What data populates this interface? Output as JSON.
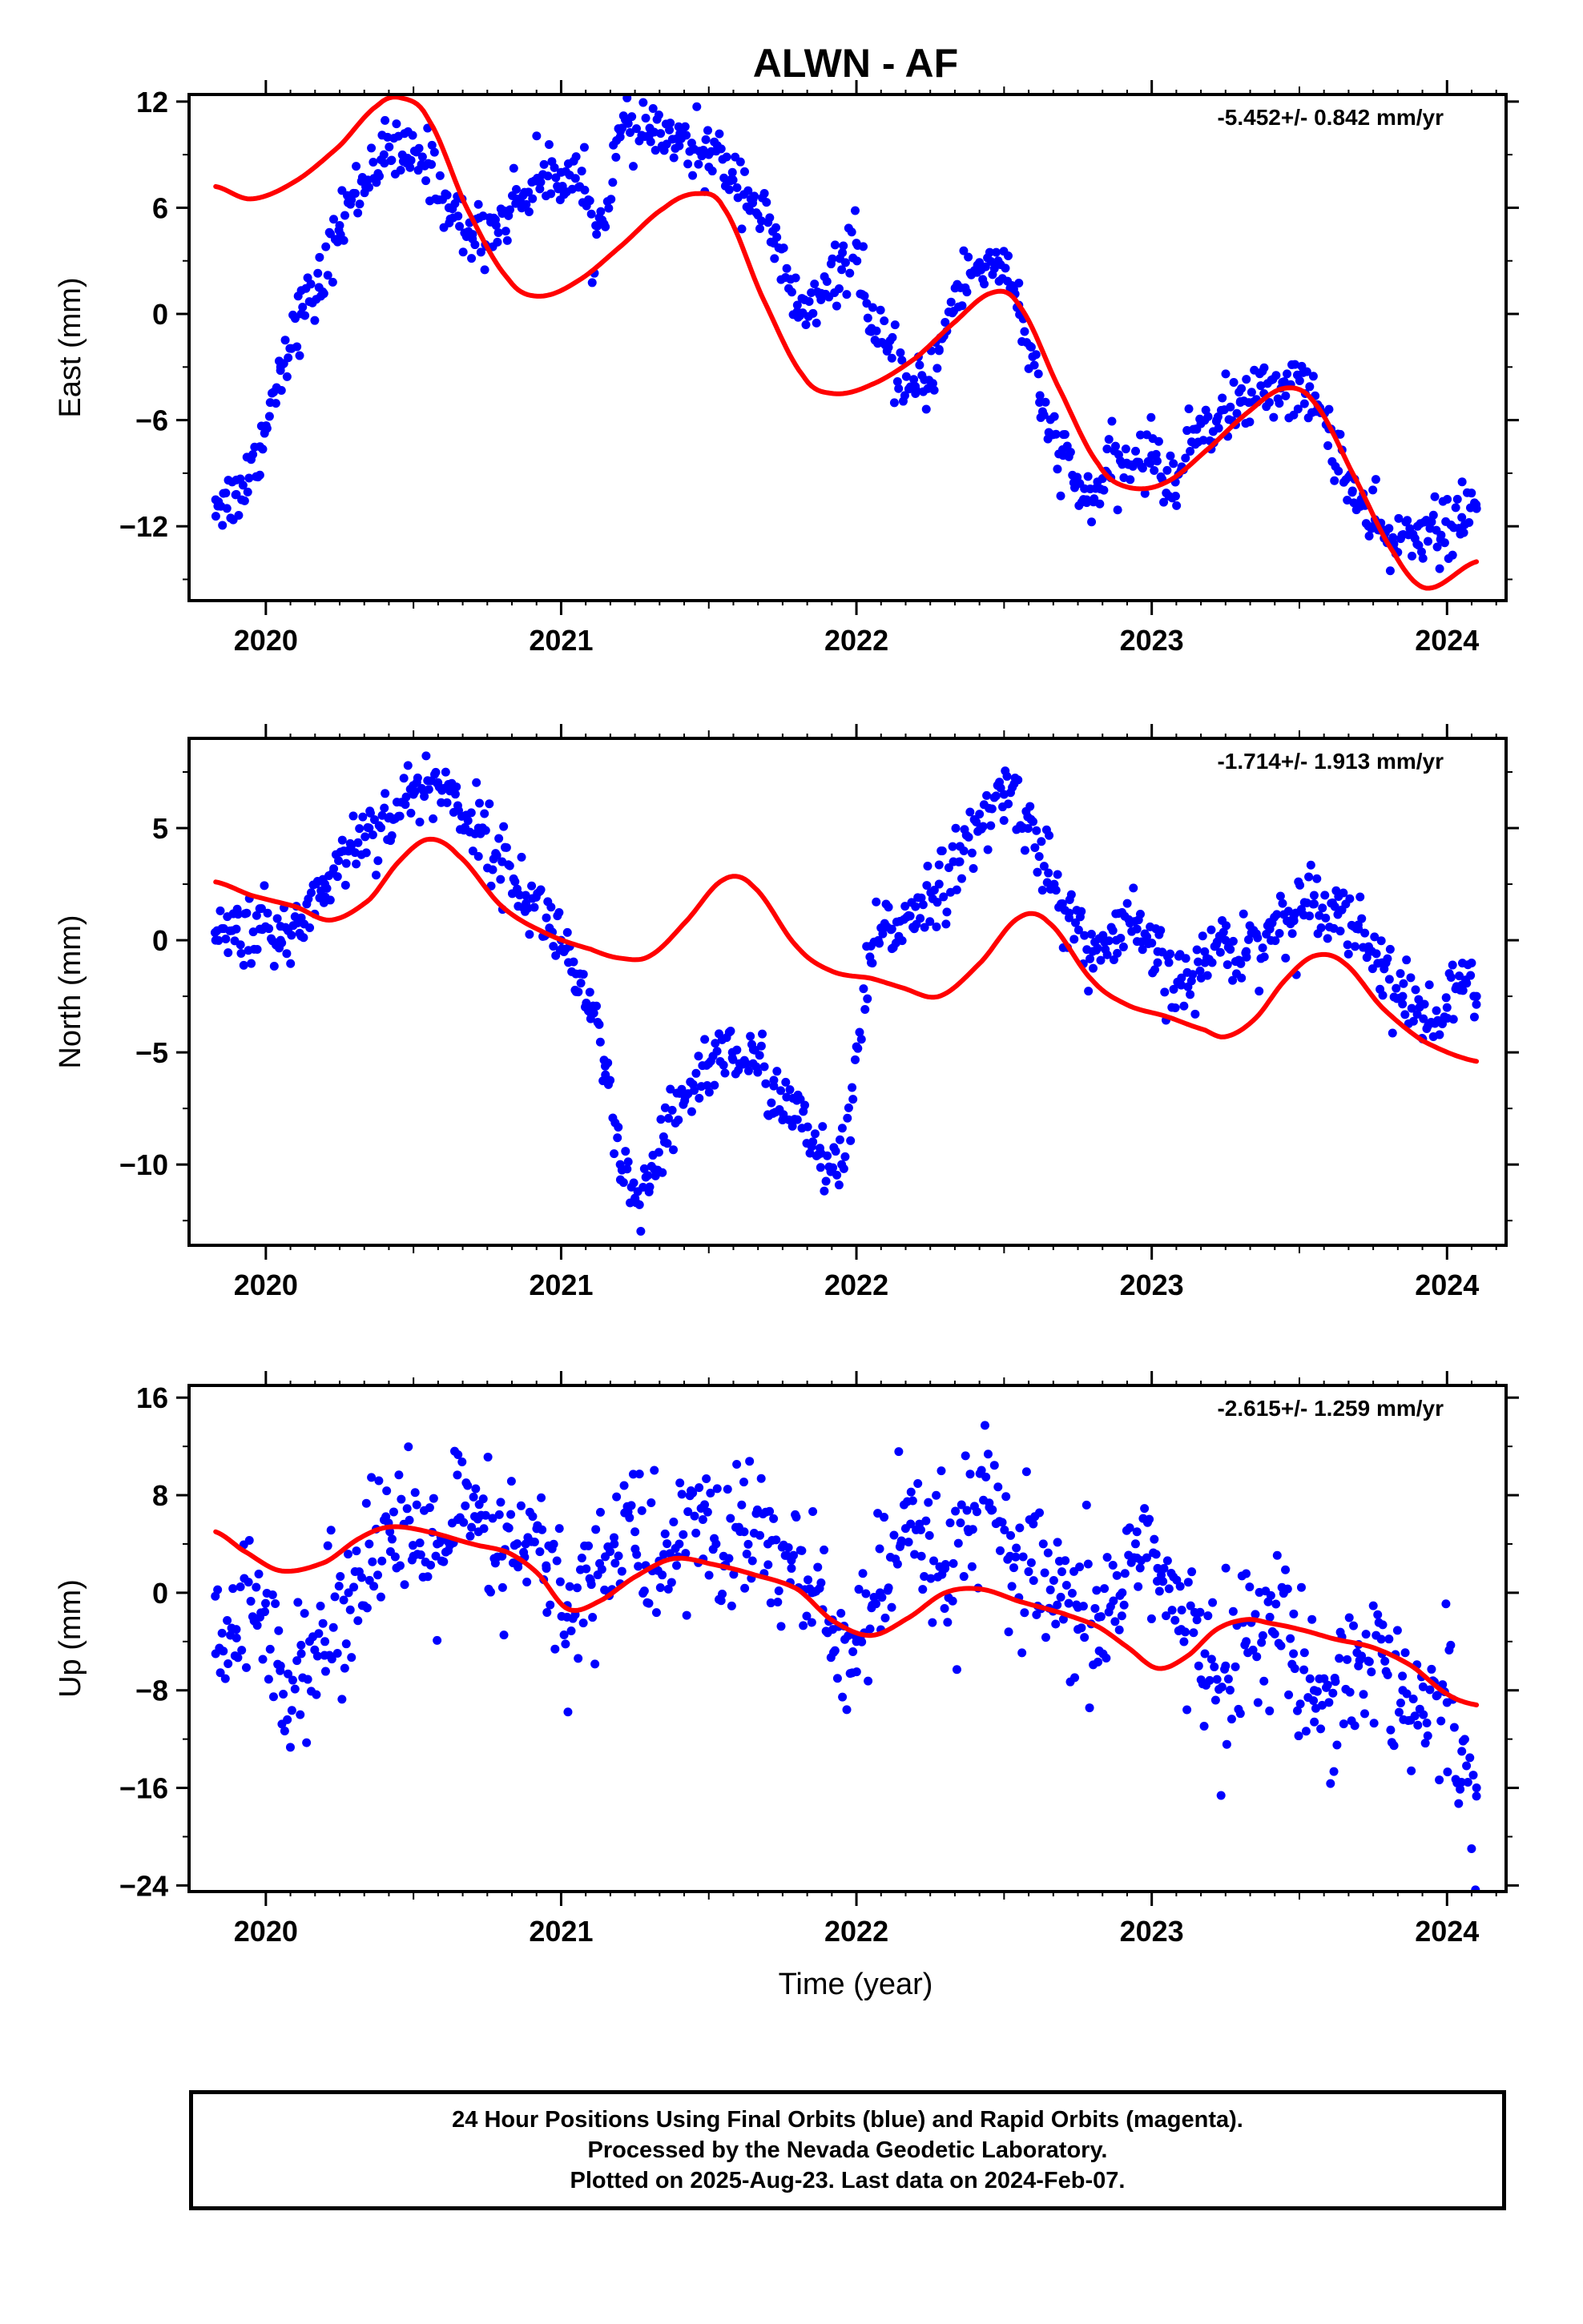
{
  "title": "ALWN - AF",
  "xlabel": "Time (year)",
  "colors": {
    "points": "#0000ff",
    "fit": "#ff0000",
    "frame": "#000000"
  },
  "footer": {
    "line1": "24 Hour Positions Using Final Orbits (blue) and Rapid Orbits (magenta).",
    "line2": "Processed by the Nevada Geodetic Laboratory.",
    "line3": "Plotted on 2025-Aug-23. Last data on 2024-Feb-07."
  },
  "chart_data": [
    {
      "type": "scatter",
      "ylabel": "East (mm)",
      "rate": "-5.452+/- 0.842 mm/yr",
      "xlim": [
        2019.74,
        2024.2
      ],
      "ylim": [
        -16.2,
        12.4
      ],
      "x_ticks": [
        2020,
        2021,
        2022,
        2023,
        2024
      ],
      "y_ticks": [
        12,
        6,
        0,
        -6,
        -12
      ],
      "series": [
        {
          "kind": "points",
          "x": [
            2019.83,
            2019.9,
            2019.98,
            2020.05,
            2020.12,
            2020.18,
            2020.25,
            2020.33,
            2020.4,
            2020.48,
            2020.55,
            2020.62,
            2020.7,
            2020.78,
            2020.85,
            2020.92,
            2021.0,
            2021.08,
            2021.12,
            2021.2,
            2021.3,
            2021.4,
            2021.5,
            2021.58,
            2021.65,
            2021.72,
            2021.8,
            2021.88,
            2021.95,
            2022.0,
            2022.05,
            2022.12,
            2022.2,
            2022.28,
            2022.35,
            2022.42,
            2022.48,
            2022.55,
            2022.62,
            2022.7,
            2022.78,
            2022.85,
            2022.92,
            2023.0,
            2023.08,
            2023.15,
            2023.22,
            2023.3,
            2023.38,
            2023.45,
            2023.52,
            2023.6,
            2023.68,
            2023.75,
            2023.82,
            2023.9,
            2023.98,
            2024.05,
            2024.1
          ],
          "y": [
            -10.5,
            -10.2,
            -7.5,
            -3.0,
            0.0,
            1.5,
            5.0,
            7.5,
            9.0,
            8.8,
            8.5,
            6.0,
            4.5,
            5.0,
            6.5,
            7.5,
            8.0,
            7.0,
            4.5,
            10.0,
            10.5,
            9.5,
            9.0,
            8.0,
            6.5,
            4.0,
            0.5,
            0.8,
            2.5,
            4.0,
            -1.0,
            -2.5,
            -4.5,
            -2.0,
            1.5,
            2.5,
            3.0,
            0.5,
            -5.0,
            -8.0,
            -10.5,
            -9.0,
            -8.5,
            -8.0,
            -9.5,
            -6.5,
            -6.0,
            -5.0,
            -4.5,
            -4.0,
            -4.5,
            -6.5,
            -10.0,
            -12.0,
            -13.0,
            -12.0,
            -12.5,
            -11.5,
            -11.0
          ]
        },
        {
          "kind": "model",
          "x": [
            2019.83,
            2019.95,
            2020.1,
            2020.25,
            2020.38,
            2020.46,
            2020.55,
            2020.68,
            2020.82,
            2020.92,
            2021.05,
            2021.2,
            2021.35,
            2021.46,
            2021.55,
            2021.68,
            2021.82,
            2021.92,
            2022.05,
            2022.2,
            2022.33,
            2022.46,
            2022.55,
            2022.68,
            2022.82,
            2022.92,
            2023.05,
            2023.2,
            2023.33,
            2023.45,
            2023.55,
            2023.68,
            2023.82,
            2023.93,
            2024.1
          ],
          "y": [
            7.2,
            6.5,
            7.5,
            9.5,
            11.8,
            12.2,
            11.0,
            6.0,
            2.0,
            1.0,
            1.8,
            3.8,
            6.0,
            6.8,
            6.0,
            1.0,
            -3.5,
            -4.5,
            -4.0,
            -2.5,
            -0.5,
            1.2,
            0.5,
            -4.0,
            -8.5,
            -9.8,
            -9.5,
            -7.5,
            -5.5,
            -4.2,
            -5.0,
            -9.0,
            -13.5,
            -15.5,
            -14.0
          ]
        }
      ]
    },
    {
      "type": "scatter",
      "ylabel": "North (mm)",
      "rate": "-1.714+/- 1.913 mm/yr",
      "xlim": [
        2019.74,
        2024.2
      ],
      "ylim": [
        -13.6,
        9.0
      ],
      "x_ticks": [
        2020,
        2021,
        2022,
        2023,
        2024
      ],
      "y_ticks": [
        5,
        0,
        -5,
        -10
      ],
      "series": [
        {
          "kind": "points",
          "x": [
            2019.83,
            2019.9,
            2019.98,
            2020.05,
            2020.12,
            2020.2,
            2020.28,
            2020.35,
            2020.42,
            2020.5,
            2020.58,
            2020.65,
            2020.72,
            2020.8,
            2020.88,
            2020.95,
            2021.0,
            2021.05,
            2021.1,
            2021.15,
            2021.2,
            2021.25,
            2021.3,
            2021.35,
            2021.42,
            2021.5,
            2021.58,
            2021.65,
            2021.72,
            2021.8,
            2021.88,
            2021.95,
            2022.05,
            2022.12,
            2022.2,
            2022.28,
            2022.35,
            2022.42,
            2022.5,
            2022.58,
            2022.65,
            2022.72,
            2022.8,
            2022.88,
            2022.95,
            2023.02,
            2023.1,
            2023.18,
            2023.25,
            2023.32,
            2023.4,
            2023.48,
            2023.55,
            2023.62,
            2023.7,
            2023.78,
            2023.85,
            2023.92,
            2024.0,
            2024.05,
            2024.1
          ],
          "y": [
            0.0,
            0.5,
            0.5,
            0.0,
            1.0,
            2.5,
            4.0,
            5.0,
            5.5,
            6.5,
            7.0,
            6.0,
            5.0,
            3.5,
            2.0,
            1.0,
            0.0,
            -1.5,
            -3.5,
            -6.0,
            -10.0,
            -11.5,
            -11.0,
            -9.0,
            -7.0,
            -5.5,
            -5.0,
            -5.5,
            -6.5,
            -8.0,
            -9.5,
            -10.0,
            -1.0,
            0.5,
            1.5,
            2.5,
            3.5,
            5.0,
            6.5,
            5.5,
            3.0,
            1.0,
            -0.5,
            0.0,
            0.5,
            -1.0,
            -2.0,
            -1.0,
            0.0,
            -0.5,
            0.5,
            1.0,
            2.0,
            1.5,
            0.5,
            -1.0,
            -2.5,
            -3.5,
            -3.0,
            -2.0,
            -2.5
          ]
        },
        {
          "kind": "model",
          "x": [
            2019.83,
            2019.95,
            2020.1,
            2020.22,
            2020.35,
            2020.45,
            2020.55,
            2020.65,
            2020.8,
            2020.95,
            2021.1,
            2021.2,
            2021.3,
            2021.42,
            2021.55,
            2021.65,
            2021.8,
            2021.92,
            2022.05,
            2022.15,
            2022.28,
            2022.42,
            2022.55,
            2022.65,
            2022.8,
            2022.92,
            2023.05,
            2023.18,
            2023.25,
            2023.35,
            2023.45,
            2023.55,
            2023.65,
            2023.78,
            2023.92,
            2024.1
          ],
          "y": [
            2.6,
            2.0,
            1.5,
            0.9,
            1.8,
            3.5,
            4.5,
            3.8,
            1.5,
            0.3,
            -0.4,
            -0.8,
            -0.7,
            0.8,
            2.7,
            2.4,
            -0.3,
            -1.4,
            -1.7,
            -2.1,
            -2.5,
            -1.0,
            1.0,
            0.8,
            -1.8,
            -2.9,
            -3.4,
            -4.0,
            -4.3,
            -3.5,
            -1.8,
            -0.7,
            -1.0,
            -3.0,
            -4.5,
            -5.4
          ]
        }
      ]
    },
    {
      "type": "scatter",
      "ylabel": "Up (mm)",
      "rate": "-2.615+/- 1.259 mm/yr",
      "xlim": [
        2019.74,
        2024.2
      ],
      "ylim": [
        -24.5,
        17.0
      ],
      "x_ticks": [
        2020,
        2021,
        2022,
        2023,
        2024
      ],
      "y_ticks": [
        16,
        8,
        0,
        -8,
        -16,
        -24
      ],
      "series": [
        {
          "kind": "points",
          "x": [
            2019.83,
            2019.9,
            2019.98,
            2020.05,
            2020.12,
            2020.2,
            2020.28,
            2020.35,
            2020.42,
            2020.5,
            2020.58,
            2020.65,
            2020.72,
            2020.8,
            2020.88,
            2020.95,
            2021.02,
            2021.1,
            2021.18,
            2021.25,
            2021.32,
            2021.4,
            2021.48,
            2021.55,
            2021.62,
            2021.7,
            2021.78,
            2021.85,
            2021.92,
            2022.0,
            2022.08,
            2022.15,
            2022.22,
            2022.3,
            2022.38,
            2022.45,
            2022.52,
            2022.6,
            2022.68,
            2022.75,
            2022.82,
            2022.9,
            2022.95,
            2023.02,
            2023.1,
            2023.18,
            2023.25,
            2023.32,
            2023.4,
            2023.48,
            2023.55,
            2023.62,
            2023.7,
            2023.78,
            2023.85,
            2023.92,
            2024.0,
            2024.05,
            2024.1
          ],
          "y": [
            -5.0,
            -3.0,
            -2.0,
            -6.0,
            -5.0,
            -4.0,
            0.0,
            4.0,
            5.0,
            3.0,
            4.0,
            6.0,
            5.0,
            3.0,
            4.0,
            2.0,
            -2.0,
            1.0,
            4.0,
            5.0,
            2.0,
            4.0,
            6.0,
            3.0,
            5.0,
            4.0,
            2.0,
            0.0,
            -3.0,
            -4.0,
            0.0,
            4.0,
            3.0,
            2.0,
            5.0,
            7.0,
            3.0,
            1.0,
            -1.0,
            -3.0,
            -2.0,
            0.0,
            5.0,
            2.0,
            -3.0,
            -5.0,
            -6.0,
            -4.0,
            -2.0,
            -5.0,
            -8.0,
            -7.0,
            -6.0,
            -5.0,
            -8.0,
            -10.0,
            -9.0,
            -13.0,
            -16.0
          ]
        },
        {
          "kind": "model",
          "x": [
            2019.83,
            2019.92,
            2020.05,
            2020.2,
            2020.32,
            2020.42,
            2020.55,
            2020.7,
            2020.82,
            2020.92,
            2021.02,
            2021.12,
            2021.25,
            2021.38,
            2021.52,
            2021.65,
            2021.8,
            2021.92,
            2022.05,
            2022.18,
            2022.3,
            2022.42,
            2022.55,
            2022.7,
            2022.82,
            2022.92,
            2023.02,
            2023.12,
            2023.22,
            2023.32,
            2023.4,
            2023.5,
            2023.62,
            2023.75,
            2023.88,
            2024.0,
            2024.1
          ],
          "y": [
            5.0,
            3.5,
            1.8,
            2.5,
            4.5,
            5.4,
            5.0,
            4.0,
            3.3,
            1.6,
            -1.3,
            -0.8,
            1.3,
            2.8,
            2.3,
            1.5,
            0.3,
            -2.3,
            -3.5,
            -2.0,
            0.0,
            0.3,
            -0.7,
            -1.7,
            -2.8,
            -4.5,
            -6.2,
            -5.2,
            -3.0,
            -2.2,
            -2.5,
            -3.0,
            -3.8,
            -4.5,
            -6.0,
            -8.3,
            -9.2
          ]
        }
      ]
    }
  ]
}
